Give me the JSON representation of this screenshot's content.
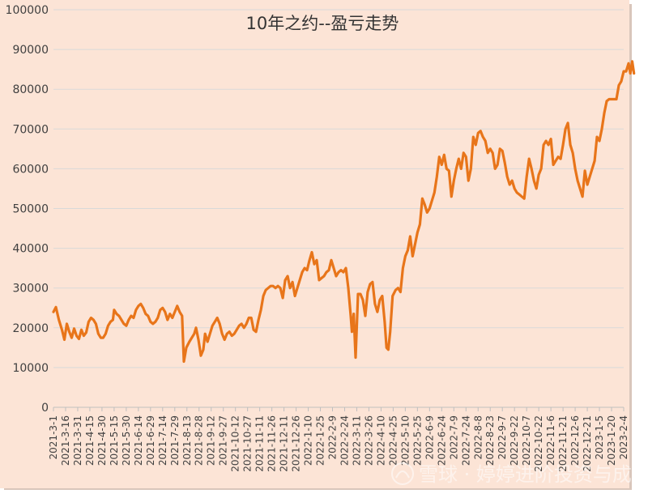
{
  "chart_data": {
    "type": "line",
    "title": "10年之约--盈亏走势",
    "xlabel": "",
    "ylabel": "",
    "ylim": [
      0,
      100000
    ],
    "yticks": [
      0,
      10000,
      20000,
      30000,
      40000,
      50000,
      60000,
      70000,
      80000,
      90000,
      100000
    ],
    "categories": [
      "2021-3-1",
      "2021-3-16",
      "2021-3-31",
      "2021-4-15",
      "2021-4-30",
      "2021-5-15",
      "2021-5-30",
      "2021-6-14",
      "2021-6-29",
      "2021-7-14",
      "2021-7-29",
      "2021-8-13",
      "2021-8-28",
      "2021-9-12",
      "2021-9-27",
      "2021-10-12",
      "2021-10-27",
      "2021-11-11",
      "2021-11-26",
      "2021-12-11",
      "2021-12-26",
      "2022-1-10",
      "2022-1-25",
      "2022-2-9",
      "2022-2-24",
      "2022-3-11",
      "2022-3-26",
      "2022-4-10",
      "2022-4-25",
      "2022-5-10",
      "2022-5-25",
      "2022-6-9",
      "2022-6-24",
      "2022-7-9",
      "2022-7-24",
      "2022-8-8",
      "2022-8-23",
      "2022-9-7",
      "2022-9-22",
      "2022-10-7",
      "2022-10-22",
      "2022-11-6",
      "2022-11-21",
      "2022-12-6",
      "2022-12-21",
      "2023-1-5",
      "2023-1-20",
      "2023-2-4"
    ],
    "series": [
      {
        "color": "#E8751A",
        "points": [
          [
            0,
            24000
          ],
          [
            0.2,
            25200
          ],
          [
            0.45,
            22000
          ],
          [
            0.7,
            19500
          ],
          [
            0.9,
            17000
          ],
          [
            1.1,
            21000
          ],
          [
            1.3,
            19000
          ],
          [
            1.5,
            17500
          ],
          [
            1.7,
            19800
          ],
          [
            1.9,
            18000
          ],
          [
            2.1,
            17200
          ],
          [
            2.3,
            19500
          ],
          [
            2.5,
            18000
          ],
          [
            2.7,
            18800
          ],
          [
            2.9,
            21500
          ],
          [
            3.1,
            22500
          ],
          [
            3.3,
            22000
          ],
          [
            3.5,
            21000
          ],
          [
            3.7,
            18500
          ],
          [
            3.9,
            17500
          ],
          [
            4.1,
            17500
          ],
          [
            4.3,
            18500
          ],
          [
            4.5,
            20500
          ],
          [
            4.7,
            21500
          ],
          [
            4.9,
            22000
          ],
          [
            5.0,
            24500
          ],
          [
            5.2,
            23500
          ],
          [
            5.4,
            23000
          ],
          [
            5.6,
            22000
          ],
          [
            5.8,
            21000
          ],
          [
            6.0,
            20500
          ],
          [
            6.2,
            22000
          ],
          [
            6.4,
            23000
          ],
          [
            6.6,
            22500
          ],
          [
            6.8,
            24500
          ],
          [
            7.0,
            25500
          ],
          [
            7.2,
            26000
          ],
          [
            7.4,
            25000
          ],
          [
            7.6,
            23500
          ],
          [
            7.8,
            23000
          ],
          [
            8.0,
            21500
          ],
          [
            8.2,
            21000
          ],
          [
            8.4,
            21500
          ],
          [
            8.6,
            22500
          ],
          [
            8.8,
            24500
          ],
          [
            9.0,
            25000
          ],
          [
            9.2,
            24000
          ],
          [
            9.4,
            22000
          ],
          [
            9.6,
            23500
          ],
          [
            9.8,
            22500
          ],
          [
            10.0,
            24000
          ],
          [
            10.2,
            25500
          ],
          [
            10.4,
            24000
          ],
          [
            10.6,
            23000
          ],
          [
            10.75,
            11500
          ],
          [
            10.95,
            15000
          ],
          [
            11.2,
            16500
          ],
          [
            11.4,
            17500
          ],
          [
            11.6,
            18500
          ],
          [
            11.75,
            20000
          ],
          [
            11.95,
            17000
          ],
          [
            12.15,
            13000
          ],
          [
            12.35,
            14500
          ],
          [
            12.5,
            18500
          ],
          [
            12.7,
            16500
          ],
          [
            12.9,
            18500
          ],
          [
            13.1,
            20500
          ],
          [
            13.3,
            21500
          ],
          [
            13.5,
            22500
          ],
          [
            13.7,
            21000
          ],
          [
            13.9,
            18500
          ],
          [
            14.1,
            17000
          ],
          [
            14.3,
            18500
          ],
          [
            14.5,
            19000
          ],
          [
            14.7,
            18000
          ],
          [
            14.9,
            18500
          ],
          [
            15.1,
            19500
          ],
          [
            15.3,
            20500
          ],
          [
            15.5,
            21000
          ],
          [
            15.7,
            20000
          ],
          [
            15.9,
            21000
          ],
          [
            16.1,
            22500
          ],
          [
            16.3,
            22500
          ],
          [
            16.5,
            19500
          ],
          [
            16.7,
            19000
          ],
          [
            16.9,
            22000
          ],
          [
            17.1,
            24500
          ],
          [
            17.3,
            28000
          ],
          [
            17.5,
            29500
          ],
          [
            17.7,
            30000
          ],
          [
            17.9,
            30500
          ],
          [
            18.1,
            30500
          ],
          [
            18.3,
            30000
          ],
          [
            18.5,
            30500
          ],
          [
            18.7,
            30000
          ],
          [
            18.9,
            27500
          ],
          [
            19.1,
            32000
          ],
          [
            19.3,
            33000
          ],
          [
            19.5,
            30000
          ],
          [
            19.7,
            31500
          ],
          [
            19.9,
            28000
          ],
          [
            20.1,
            30000
          ],
          [
            20.3,
            32000
          ],
          [
            20.5,
            34000
          ],
          [
            20.7,
            35000
          ],
          [
            20.9,
            34500
          ],
          [
            21.1,
            37000
          ],
          [
            21.3,
            39000
          ],
          [
            21.5,
            36000
          ],
          [
            21.7,
            37000
          ],
          [
            21.9,
            32000
          ],
          [
            22.1,
            32500
          ],
          [
            22.3,
            33000
          ],
          [
            22.5,
            34000
          ],
          [
            22.7,
            34500
          ],
          [
            22.9,
            37000
          ],
          [
            23.1,
            35000
          ],
          [
            23.3,
            33000
          ],
          [
            23.5,
            34000
          ],
          [
            23.7,
            34500
          ],
          [
            23.9,
            34000
          ],
          [
            24.1,
            35000
          ],
          [
            24.3,
            30000
          ],
          [
            24.5,
            23000
          ],
          [
            24.6,
            19000
          ],
          [
            24.75,
            23500
          ],
          [
            24.9,
            12500
          ],
          [
            25.1,
            28500
          ],
          [
            25.3,
            28500
          ],
          [
            25.5,
            27000
          ],
          [
            25.7,
            23000
          ],
          [
            25.9,
            29000
          ],
          [
            26.1,
            31000
          ],
          [
            26.3,
            31500
          ],
          [
            26.5,
            26000
          ],
          [
            26.7,
            24000
          ],
          [
            26.9,
            27000
          ],
          [
            27.1,
            28000
          ],
          [
            27.3,
            21500
          ],
          [
            27.45,
            15000
          ],
          [
            27.6,
            14500
          ],
          [
            27.75,
            19000
          ],
          [
            27.95,
            28000
          ],
          [
            28.2,
            29500
          ],
          [
            28.4,
            30000
          ],
          [
            28.6,
            29000
          ],
          [
            28.8,
            35000
          ],
          [
            29.0,
            38000
          ],
          [
            29.2,
            39500
          ],
          [
            29.4,
            43000
          ],
          [
            29.6,
            38000
          ],
          [
            29.8,
            41000
          ],
          [
            30.0,
            44000
          ],
          [
            30.2,
            46000
          ],
          [
            30.4,
            52500
          ],
          [
            30.6,
            51000
          ],
          [
            30.8,
            49000
          ],
          [
            31.0,
            50000
          ],
          [
            31.2,
            52000
          ],
          [
            31.4,
            54000
          ],
          [
            31.6,
            58000
          ],
          [
            31.8,
            63000
          ],
          [
            32.0,
            61000
          ],
          [
            32.2,
            63500
          ],
          [
            32.4,
            60000
          ],
          [
            32.6,
            59500
          ],
          [
            32.8,
            53000
          ],
          [
            33.0,
            57000
          ],
          [
            33.2,
            60000
          ],
          [
            33.4,
            62500
          ],
          [
            33.6,
            60000
          ],
          [
            33.8,
            64000
          ],
          [
            34.0,
            63000
          ],
          [
            34.2,
            57000
          ],
          [
            34.4,
            60000
          ],
          [
            34.6,
            68000
          ],
          [
            34.8,
            66000
          ],
          [
            35.0,
            69000
          ],
          [
            35.2,
            69500
          ],
          [
            35.4,
            68000
          ],
          [
            35.6,
            67000
          ],
          [
            35.8,
            64000
          ],
          [
            36.0,
            65000
          ],
          [
            36.2,
            64000
          ],
          [
            36.4,
            60000
          ],
          [
            36.6,
            61000
          ],
          [
            36.8,
            65000
          ],
          [
            37.0,
            64500
          ],
          [
            37.2,
            61500
          ],
          [
            37.4,
            58000
          ],
          [
            37.6,
            56000
          ],
          [
            37.8,
            57000
          ],
          [
            38.0,
            55000
          ],
          [
            38.2,
            54000
          ],
          [
            38.4,
            53500
          ],
          [
            38.6,
            53000
          ],
          [
            38.8,
            52500
          ],
          [
            39.0,
            58000
          ],
          [
            39.2,
            62500
          ],
          [
            39.4,
            60000
          ],
          [
            39.6,
            57000
          ],
          [
            39.8,
            55000
          ],
          [
            40.0,
            58500
          ],
          [
            40.2,
            60000
          ],
          [
            40.4,
            66000
          ],
          [
            40.6,
            67000
          ],
          [
            40.8,
            66000
          ],
          [
            41.0,
            67500
          ],
          [
            41.2,
            61000
          ],
          [
            41.4,
            62000
          ],
          [
            41.6,
            63000
          ],
          [
            41.8,
            62500
          ],
          [
            42.0,
            66000
          ],
          [
            42.2,
            70000
          ],
          [
            42.4,
            71500
          ],
          [
            42.6,
            66000
          ],
          [
            42.8,
            64000
          ],
          [
            43.0,
            60000
          ],
          [
            43.2,
            57000
          ],
          [
            43.4,
            55000
          ],
          [
            43.6,
            53000
          ],
          [
            43.8,
            59500
          ],
          [
            44.0,
            56000
          ],
          [
            44.2,
            58000
          ],
          [
            44.4,
            60000
          ],
          [
            44.6,
            62000
          ],
          [
            44.8,
            68000
          ],
          [
            45.0,
            67000
          ],
          [
            45.2,
            70000
          ],
          [
            45.4,
            74000
          ],
          [
            45.6,
            77000
          ],
          [
            45.8,
            77500
          ],
          [
            46.0,
            77500
          ],
          [
            46.2,
            77500
          ],
          [
            46.4,
            77500
          ],
          [
            46.6,
            81000
          ],
          [
            46.8,
            82000
          ],
          [
            47.0,
            84500
          ],
          [
            47.2,
            84500
          ],
          [
            47.4,
            86500
          ],
          [
            47.55,
            84000
          ],
          [
            47.7,
            87000
          ],
          [
            47.85,
            84000
          ]
        ]
      }
    ],
    "grid": true,
    "legend": "none"
  },
  "watermark": "雪球 · 婷婷进阶投资与成长",
  "colors": {
    "background": "#FCE4D6",
    "line": "#E8751A",
    "grid": "#D9D9D9",
    "text": "#404040"
  }
}
